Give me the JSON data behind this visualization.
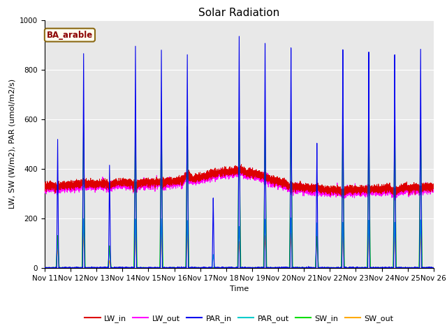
{
  "title": "Solar Radiation",
  "ylabel": "LW, SW (W/m2), PAR (umol/m2/s)",
  "xlabel": "Time",
  "annotation": "BA_arable",
  "ylim": [
    0,
    1000
  ],
  "xtick_labels": [
    "Nov 11",
    "Nov 12",
    "Nov 13",
    "Nov 14",
    "Nov 15",
    "Nov 16",
    "Nov 17",
    "Nov 18",
    "Nov 19",
    "Nov 20",
    "Nov 21",
    "Nov 22",
    "Nov 23",
    "Nov 24",
    "Nov 25",
    "Nov 26"
  ],
  "colors": {
    "LW_in": "#dd0000",
    "LW_out": "#ff00ff",
    "PAR_in": "#0000ee",
    "PAR_out": "#00cccc",
    "SW_in": "#00dd00",
    "SW_out": "#ffaa00"
  },
  "bg_color": "#e8e8e8",
  "title_fontsize": 11,
  "label_fontsize": 8,
  "tick_fontsize": 7.5,
  "legend_fontsize": 8
}
